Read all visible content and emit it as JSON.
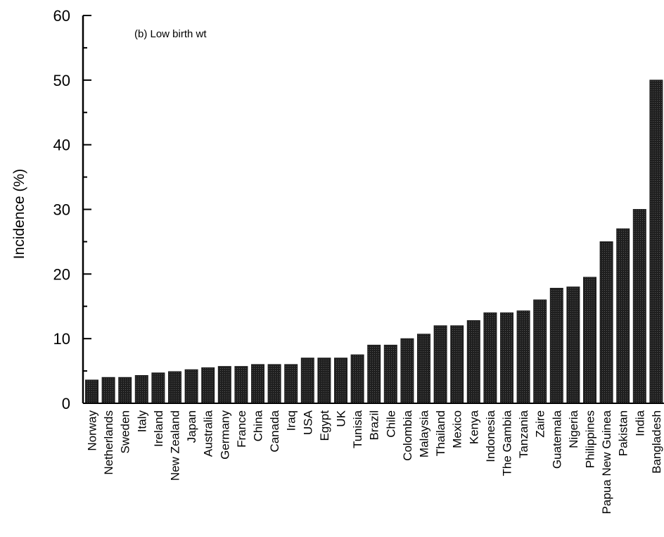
{
  "chart_data": {
    "type": "bar",
    "title": "",
    "annotation": "(b) Low birth wt",
    "xlabel": "",
    "ylabel": "Incidence  (%)",
    "ylim": [
      0,
      60
    ],
    "yticks": [
      0,
      10,
      20,
      30,
      40,
      50,
      60
    ],
    "grid": false,
    "bar_color": "#1f1f1f",
    "categories": [
      "Norway",
      "Netherlands",
      "Sweden",
      "Italy",
      "Ireland",
      "New Zealand",
      "Japan",
      "Australia",
      "Germany",
      "France",
      "China",
      "Canada",
      "Iraq",
      "USA",
      "Egypt",
      "UK",
      "Tunisia",
      "Brazil",
      "Chile",
      "Colombia",
      "Malaysia",
      "Thailand",
      "Mexico",
      "Kenya",
      "Indonesia",
      "The Gambia",
      "Tanzania",
      "Zaire",
      "Guatemala",
      "Nigeria",
      "Philippines",
      "Papua New Guinea",
      "Pakistan",
      "India",
      "Bangladesh"
    ],
    "values": [
      3.6,
      4.0,
      4.0,
      4.3,
      4.7,
      4.9,
      5.2,
      5.5,
      5.7,
      5.7,
      6.0,
      6.0,
      6.0,
      7.0,
      7.0,
      7.0,
      7.5,
      9.0,
      9.0,
      10.0,
      10.7,
      12.0,
      12.0,
      12.8,
      14.0,
      14.0,
      14.3,
      16.0,
      17.8,
      18.0,
      19.5,
      25.0,
      27.0,
      30.0,
      50.0
    ]
  }
}
